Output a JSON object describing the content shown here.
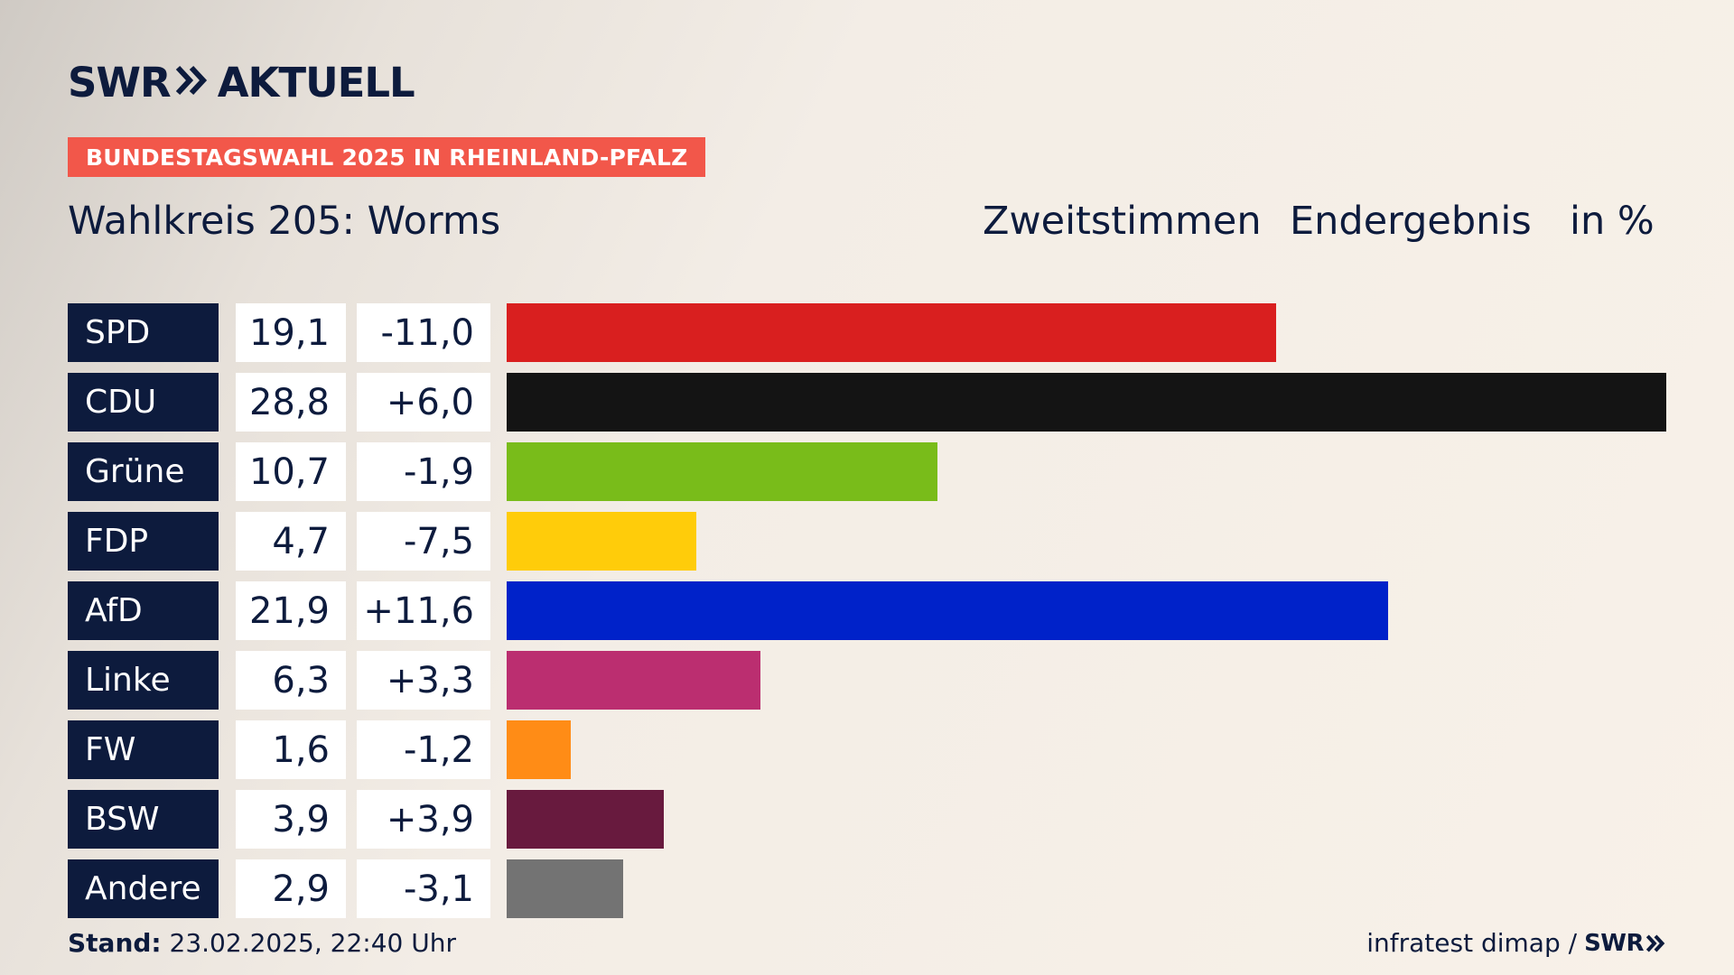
{
  "header": {
    "logo_left": "SWR",
    "logo_right": "AKTUELL",
    "badge": "BUNDESTAGSWAHL 2025 IN RHEINLAND-PFALZ",
    "title": "Wahlkreis 205: Worms",
    "col_vote": "Zweitstimmen",
    "col_result": "Endergebnis",
    "col_unit": "in %"
  },
  "colors": {
    "navy": "#0d1b3d",
    "badge": "#f2574a"
  },
  "chart_data": {
    "type": "bar",
    "orientation": "horizontal",
    "categories": [
      "SPD",
      "CDU",
      "Grüne",
      "FDP",
      "AfD",
      "Linke",
      "FW",
      "BSW",
      "Andere"
    ],
    "values": [
      19.1,
      28.8,
      10.7,
      4.7,
      21.9,
      6.3,
      1.6,
      3.9,
      2.9
    ],
    "value_labels": [
      "19,1",
      "28,8",
      "10,7",
      "4,7",
      "21,9",
      "6,3",
      "1,6",
      "3,9",
      "2,9"
    ],
    "diffs": [
      -11.0,
      6.0,
      -1.9,
      -7.5,
      11.6,
      3.3,
      -1.2,
      3.9,
      -3.1
    ],
    "diff_labels": [
      "-11,0",
      "+6,0",
      "-1,9",
      "-7,5",
      "+11,6",
      "+3,3",
      "-1,2",
      "+3,9",
      "-3,1"
    ],
    "colors": [
      "#d91f1f",
      "#141414",
      "#79bc1a",
      "#ffcc0a",
      "#0022c9",
      "#bb2e70",
      "#ff8c16",
      "#681a3e",
      "#737373"
    ],
    "xlim": [
      0,
      28.8
    ],
    "legend": "none",
    "grid": false
  },
  "footer": {
    "stand_label": "Stand:",
    "stand_value": "23.02.2025, 22:40 Uhr",
    "source": "infratest dimap /",
    "source_logo": "SWR"
  }
}
